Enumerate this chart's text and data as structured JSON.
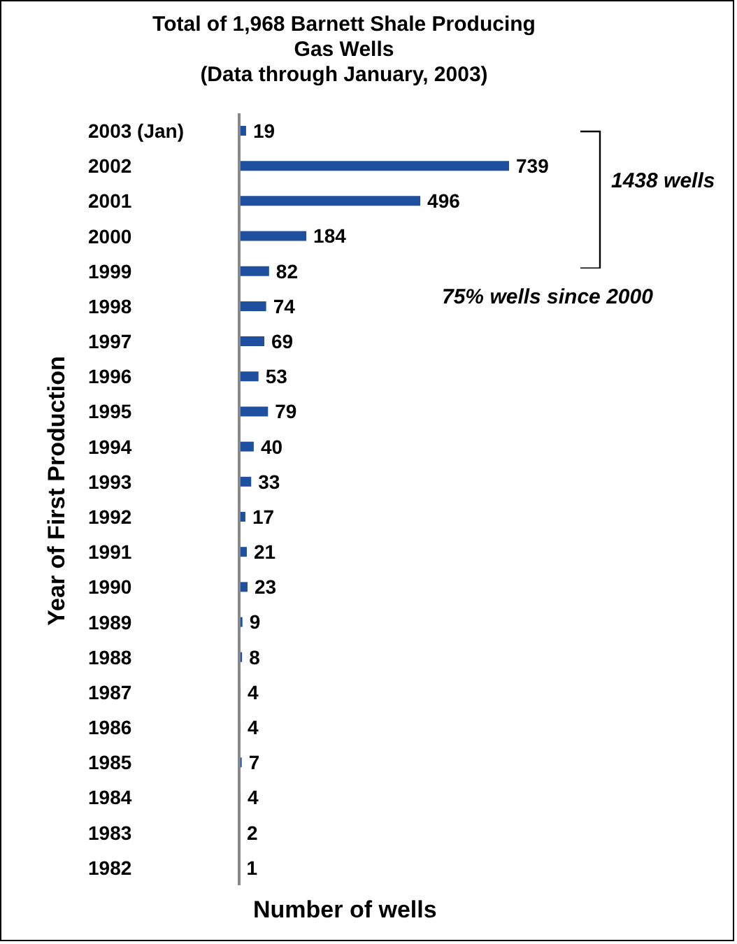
{
  "chart_data": {
    "type": "bar",
    "orientation": "horizontal",
    "title": "Total of 1,968 Barnett Shale Producing Gas Wells",
    "subtitle": "(Data through January, 2003)",
    "xlabel": "Number of wells",
    "ylabel": "Year of First Production",
    "categories": [
      "2003 (Jan)",
      "2002",
      "2001",
      "2000",
      "1999",
      "1998",
      "1997",
      "1996",
      "1995",
      "1994",
      "1993",
      "1992",
      "1991",
      "1990",
      "1989",
      "1988",
      "1987",
      "1986",
      "1985",
      "1984",
      "1983",
      "1982"
    ],
    "values": [
      19,
      739,
      496,
      184,
      82,
      74,
      69,
      53,
      79,
      40,
      33,
      17,
      21,
      23,
      9,
      8,
      4,
      4,
      7,
      4,
      2,
      1
    ],
    "color": "#1f4f9f",
    "data_labels": true,
    "grid": false,
    "legend": false,
    "annotations": [
      "1438 wells",
      "75% wells since 2000"
    ]
  }
}
